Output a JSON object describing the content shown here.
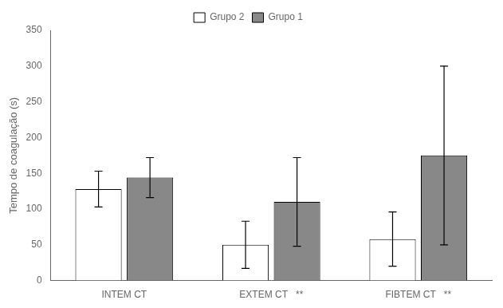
{
  "chart_data": {
    "type": "bar",
    "ylabel": "Tempo de coagulação (s)",
    "categories": [
      "INTEM CT",
      "EXTEM CT   **",
      "FIBTEM CT   **"
    ],
    "series": [
      {
        "name": "Grupo 2",
        "color": "#ffffff",
        "values": [
          128,
          50,
          58
        ],
        "errors": [
          25,
          33,
          38
        ]
      },
      {
        "name": "Grupo 1",
        "color": "#888888",
        "values": [
          144,
          110,
          175
        ],
        "errors": [
          28,
          62,
          125
        ]
      }
    ],
    "ylim": [
      0,
      350
    ],
    "yticks": [
      0,
      50,
      100,
      150,
      200,
      250,
      300,
      350
    ],
    "grid": false,
    "legend": "top"
  }
}
